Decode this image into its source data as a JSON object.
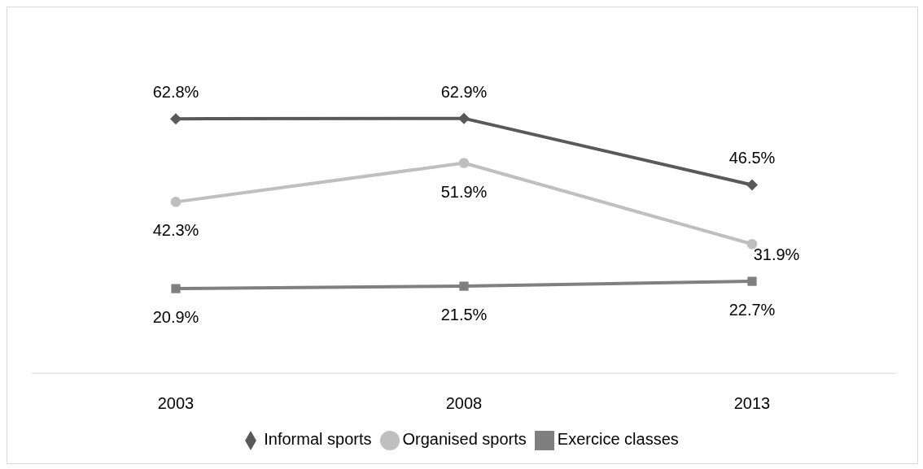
{
  "chart_data": {
    "type": "line",
    "categories": [
      "2003",
      "2008",
      "2013"
    ],
    "tick_labels": "x",
    "grid": false,
    "legend": "bottom",
    "line_style": "solid",
    "series": [
      {
        "name": "Informal sports",
        "color": "#595959",
        "marker": "diamond",
        "values": [
          62.8,
          62.9,
          46.5
        ],
        "value_labels": [
          "62.8%",
          "62.9%",
          "46.5%"
        ]
      },
      {
        "name": "Organised sports",
        "color": "#bfbfbf",
        "marker": "circle",
        "values": [
          42.3,
          51.9,
          31.9
        ],
        "value_labels": [
          "42.3%",
          "51.9%",
          "31.9%"
        ]
      },
      {
        "name": "Exercice classes",
        "color": "#7f7f7f",
        "marker": "square",
        "values": [
          20.9,
          21.5,
          22.7
        ],
        "value_labels": [
          "20.9%",
          "21.5%",
          "22.7%"
        ]
      }
    ]
  }
}
